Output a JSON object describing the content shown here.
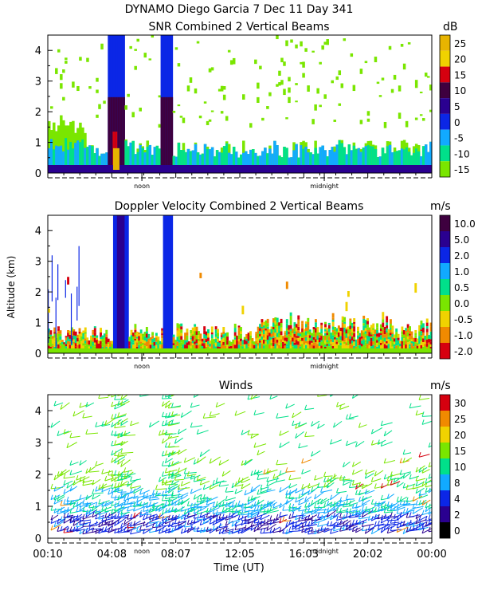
{
  "chart_data": [
    {
      "type": "heatmap",
      "title": "SNR Combined 2 Vertical Beams",
      "ylabel": "",
      "ylim": [
        0,
        4.5
      ],
      "yticks": [
        "0",
        "1",
        "2",
        "3",
        "4"
      ],
      "markers": [
        "noon",
        "midnight"
      ],
      "colorbar": {
        "unit": "dB",
        "labels": [
          "25",
          "20",
          "15",
          "10",
          "5",
          "0",
          "-5",
          "-10",
          "-15"
        ],
        "colors": [
          "#e7b400",
          "#f0d200",
          "#d6000f",
          "#3e003f",
          "#2a0090",
          "#0b26e6",
          "#11aaff",
          "#00e08a",
          "#7ae600"
        ]
      }
    },
    {
      "type": "heatmap",
      "title": "Doppler Velocity Combined 2 Vertical Beams",
      "ylabel": "Altitude (km)",
      "ylim": [
        0,
        4.5
      ],
      "yticks": [
        "0",
        "1",
        "2",
        "3",
        "4"
      ],
      "markers": [
        "noon",
        "midnight"
      ],
      "colorbar": {
        "unit": "m/s",
        "labels": [
          "10.0",
          "5.0",
          "2.0",
          "1.0",
          "0.5",
          "0.0",
          "-0.5",
          "-1.0",
          "-2.0"
        ],
        "colors": [
          "#3e003f",
          "#2a0090",
          "#0b26e6",
          "#11aaff",
          "#00e08a",
          "#7ae600",
          "#f0d200",
          "#f08a00",
          "#d6000f"
        ]
      }
    },
    {
      "type": "scatter",
      "title": "Winds",
      "xlabel": "Time (UT)",
      "ylim": [
        0,
        4.5
      ],
      "yticks": [
        "0",
        "1",
        "2",
        "3",
        "4"
      ],
      "xticks": [
        "00:10",
        "04:08",
        "08:07",
        "12:05",
        "16:03",
        "20:02",
        "00:00"
      ],
      "markers": [
        "noon",
        "midnight"
      ],
      "colorbar": {
        "unit": "m/s",
        "labels": [
          "30",
          "25",
          "20",
          "15",
          "10",
          "8",
          "4",
          "2",
          "0"
        ],
        "colors": [
          "#d6000f",
          "#f08a00",
          "#f0d200",
          "#7ae600",
          "#00e08a",
          "#11aaff",
          "#0b26e6",
          "#2a0090",
          "#000000"
        ]
      }
    }
  ],
  "header": {
    "line1": "DYNAMO Diego Garcia    7 Dec 11 Day 341"
  }
}
